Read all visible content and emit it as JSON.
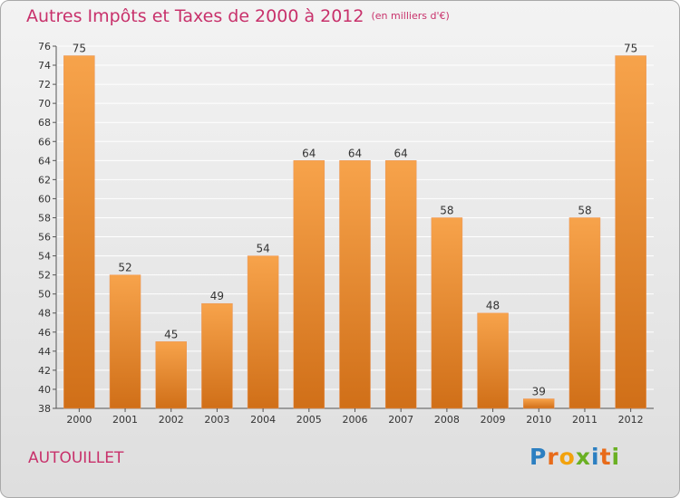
{
  "title": "Autres Impôts et Taxes de 2000 à 2012",
  "subtitle": "(en milliers d'€)",
  "commune": "AUTOUILLET",
  "logo": {
    "text": "Proxiti",
    "letters": [
      {
        "ch": "P",
        "color": "#2c7fc1"
      },
      {
        "ch": "r",
        "color": "#e86b1a"
      },
      {
        "ch": "o",
        "color": "#f2a20d"
      },
      {
        "ch": "x",
        "color": "#6ab023"
      },
      {
        "ch": "i",
        "color": "#2c7fc1"
      },
      {
        "ch": "t",
        "color": "#e86b1a"
      },
      {
        "ch": "i",
        "color": "#6ab023"
      }
    ]
  },
  "colors": {
    "title": "#c8316b",
    "bar_light": "#f7a34b",
    "bar_dark": "#d06f18",
    "grid": "#ffffff",
    "axis": "#555555"
  },
  "chart_data": {
    "type": "bar",
    "categories": [
      "2000",
      "2001",
      "2002",
      "2003",
      "2004",
      "2005",
      "2006",
      "2007",
      "2008",
      "2009",
      "2010",
      "2011",
      "2012"
    ],
    "values": [
      75,
      52,
      45,
      49,
      54,
      64,
      64,
      64,
      58,
      48,
      39,
      58,
      75
    ],
    "ylim": [
      38,
      76
    ],
    "yticks": [
      38,
      40,
      42,
      44,
      46,
      48,
      50,
      52,
      54,
      56,
      58,
      60,
      62,
      64,
      66,
      68,
      70,
      72,
      74,
      76
    ],
    "grid": true,
    "data_labels": true
  }
}
